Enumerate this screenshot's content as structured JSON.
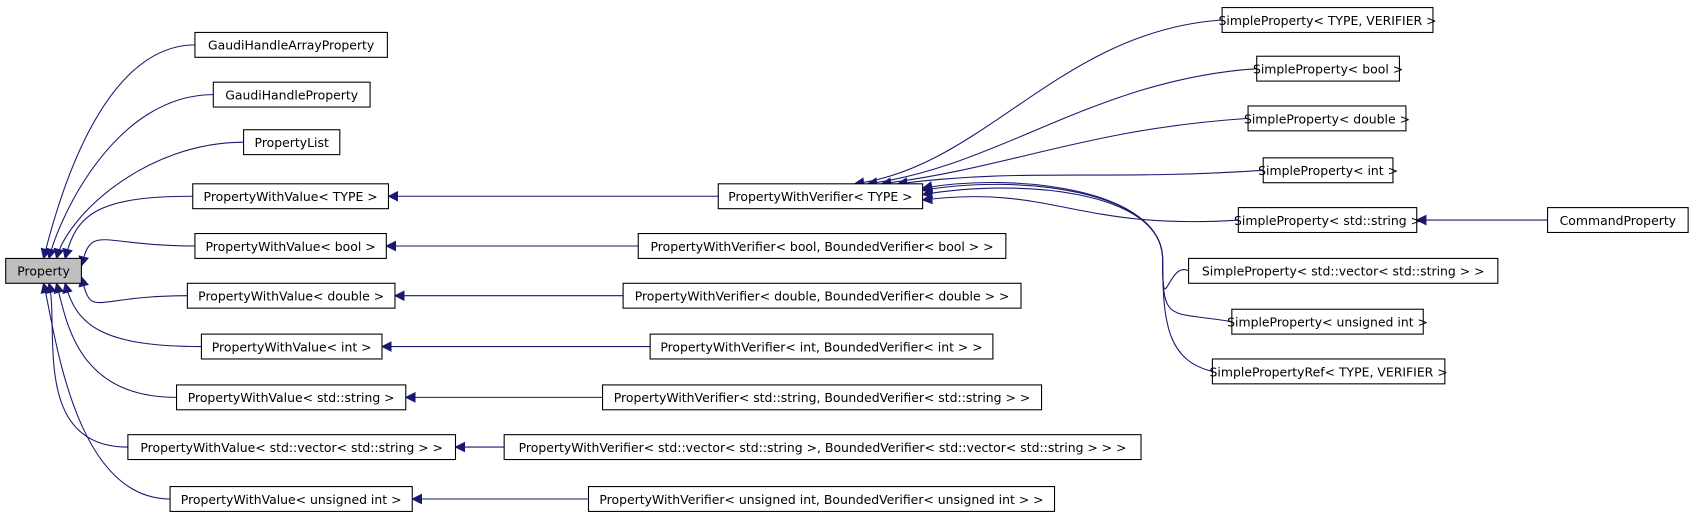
{
  "diagram": {
    "type": "inheritance-graph",
    "colors": {
      "edge": "#191970",
      "root_fill": "#bfbfbf",
      "node_fill": "#ffffff",
      "node_border": "#000000"
    },
    "root": "Property",
    "nodes": [
      {
        "id": "property",
        "label": "Property",
        "root": true
      },
      {
        "id": "ghap",
        "label": "GaudiHandleArrayProperty"
      },
      {
        "id": "ghp",
        "label": "GaudiHandleProperty"
      },
      {
        "id": "plist",
        "label": "PropertyList"
      },
      {
        "id": "pwv_type",
        "label": "PropertyWithValue< TYPE >"
      },
      {
        "id": "pwv_bool",
        "label": "PropertyWithValue< bool >"
      },
      {
        "id": "pwv_double",
        "label": "PropertyWithValue< double >"
      },
      {
        "id": "pwv_int",
        "label": "PropertyWithValue< int >"
      },
      {
        "id": "pwv_string",
        "label": "PropertyWithValue< std::string >"
      },
      {
        "id": "pwv_vector",
        "label": "PropertyWithValue< std::vector< std::string > >"
      },
      {
        "id": "pwv_uint",
        "label": "PropertyWithValue< unsigned int >"
      },
      {
        "id": "pwver_type",
        "label": "PropertyWithVerifier< TYPE >"
      },
      {
        "id": "pwver_bool",
        "label": "PropertyWithVerifier< bool, BoundedVerifier< bool > >"
      },
      {
        "id": "pwver_double",
        "label": "PropertyWithVerifier< double, BoundedVerifier< double > >"
      },
      {
        "id": "pwver_int",
        "label": "PropertyWithVerifier< int, BoundedVerifier< int > >"
      },
      {
        "id": "pwver_string",
        "label": "PropertyWithVerifier< std::string, BoundedVerifier< std::string > >"
      },
      {
        "id": "pwver_vector",
        "label": "PropertyWithVerifier< std::vector< std::string >, BoundedVerifier< std::vector< std::string > > >"
      },
      {
        "id": "pwver_uint",
        "label": "PropertyWithVerifier< unsigned int, BoundedVerifier< unsigned int > >"
      },
      {
        "id": "sp_tv",
        "label": "SimpleProperty< TYPE, VERIFIER >"
      },
      {
        "id": "sp_bool",
        "label": "SimpleProperty< bool >"
      },
      {
        "id": "sp_double",
        "label": "SimpleProperty< double >"
      },
      {
        "id": "sp_int",
        "label": "SimpleProperty< int >"
      },
      {
        "id": "sp_string",
        "label": "SimpleProperty< std::string >"
      },
      {
        "id": "sp_vector",
        "label": "SimpleProperty< std::vector< std::string > >"
      },
      {
        "id": "sp_uint",
        "label": "SimpleProperty< unsigned int >"
      },
      {
        "id": "spref",
        "label": "SimplePropertyRef< TYPE, VERIFIER >"
      },
      {
        "id": "cmdprop",
        "label": "CommandProperty"
      }
    ],
    "edges": [
      {
        "from": "ghap",
        "to": "property"
      },
      {
        "from": "ghp",
        "to": "property"
      },
      {
        "from": "plist",
        "to": "property"
      },
      {
        "from": "pwv_type",
        "to": "property"
      },
      {
        "from": "pwv_bool",
        "to": "property"
      },
      {
        "from": "pwv_double",
        "to": "property"
      },
      {
        "from": "pwv_int",
        "to": "property"
      },
      {
        "from": "pwv_string",
        "to": "property"
      },
      {
        "from": "pwv_vector",
        "to": "property"
      },
      {
        "from": "pwv_uint",
        "to": "property"
      },
      {
        "from": "pwver_type",
        "to": "pwv_type"
      },
      {
        "from": "pwver_bool",
        "to": "pwv_bool"
      },
      {
        "from": "pwver_double",
        "to": "pwv_double"
      },
      {
        "from": "pwver_int",
        "to": "pwv_int"
      },
      {
        "from": "pwver_string",
        "to": "pwv_string"
      },
      {
        "from": "pwver_vector",
        "to": "pwv_vector"
      },
      {
        "from": "pwver_uint",
        "to": "pwv_uint"
      },
      {
        "from": "sp_tv",
        "to": "pwver_type"
      },
      {
        "from": "sp_bool",
        "to": "pwver_type"
      },
      {
        "from": "sp_double",
        "to": "pwver_type"
      },
      {
        "from": "sp_int",
        "to": "pwver_type"
      },
      {
        "from": "sp_string",
        "to": "pwver_type"
      },
      {
        "from": "sp_vector",
        "to": "pwver_type"
      },
      {
        "from": "sp_uint",
        "to": "pwver_type"
      },
      {
        "from": "spref",
        "to": "pwver_type"
      },
      {
        "from": "cmdprop",
        "to": "sp_string"
      }
    ]
  }
}
